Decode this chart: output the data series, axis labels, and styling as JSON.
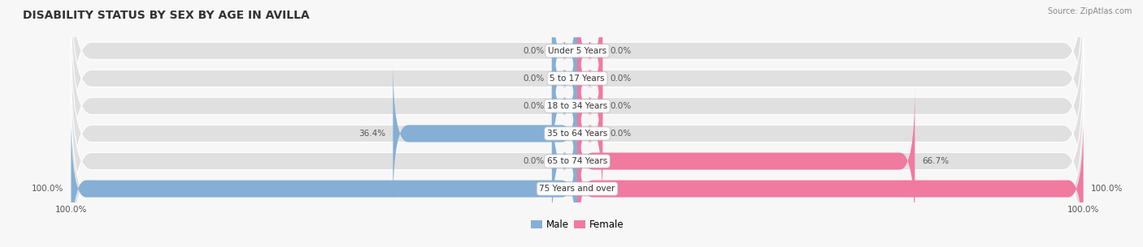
{
  "title": "DISABILITY STATUS BY SEX BY AGE IN AVILLA",
  "source": "Source: ZipAtlas.com",
  "categories": [
    "Under 5 Years",
    "5 to 17 Years",
    "18 to 34 Years",
    "35 to 64 Years",
    "65 to 74 Years",
    "75 Years and over"
  ],
  "male_values": [
    0.0,
    0.0,
    0.0,
    36.4,
    0.0,
    100.0
  ],
  "female_values": [
    0.0,
    0.0,
    0.0,
    0.0,
    66.7,
    100.0
  ],
  "male_color": "#85afd4",
  "female_color": "#f07aa0",
  "bar_bg_color": "#e0e0e0",
  "bar_height": 0.62,
  "max_val": 100.0,
  "title_fontsize": 10,
  "label_fontsize": 7.5,
  "category_fontsize": 7.5,
  "axis_label_fontsize": 7.5,
  "bg_color": "#f7f7f7",
  "zero_stub": 5.0
}
